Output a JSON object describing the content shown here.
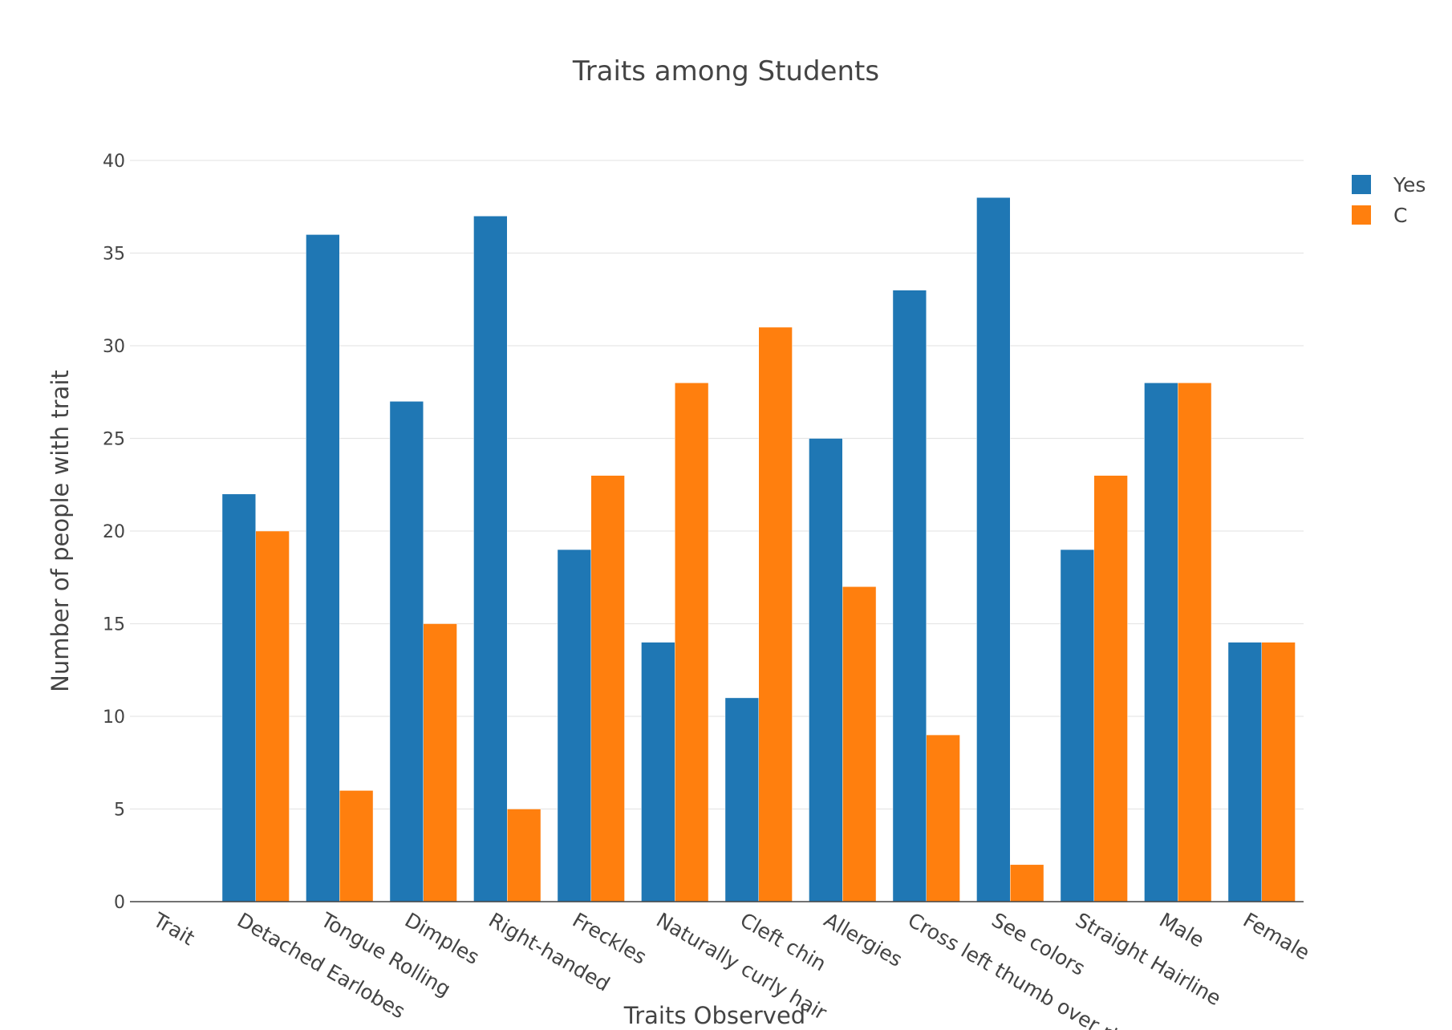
{
  "chart_data": {
    "type": "bar",
    "title": "Traits among Students",
    "xlabel": "Traits Observed",
    "ylabel": "Number of people with trait",
    "categories": [
      "Trait",
      "Detached Earlobes",
      "Tongue Rolling",
      "Dimples",
      "Right-handed",
      "Freckles",
      "Naturally curly hair",
      "Cleft chin",
      "Allergies",
      "Cross left thumb over right",
      "See colors",
      "Straight Hairline",
      "Male",
      "Female"
    ],
    "series": [
      {
        "name": "Yes",
        "color": "#1f77b4",
        "values": [
          null,
          22,
          36,
          27,
          37,
          19,
          14,
          11,
          25,
          33,
          38,
          19,
          28,
          14
        ]
      },
      {
        "name": "C",
        "color": "#ff7f0e",
        "values": [
          null,
          20,
          6,
          15,
          5,
          23,
          28,
          31,
          17,
          9,
          2,
          23,
          28,
          14
        ]
      }
    ],
    "ylim": [
      0,
      40
    ],
    "yticks": [
      0,
      5,
      10,
      15,
      20,
      25,
      30,
      35,
      40
    ],
    "grid": true,
    "legend_position": "top-right"
  }
}
